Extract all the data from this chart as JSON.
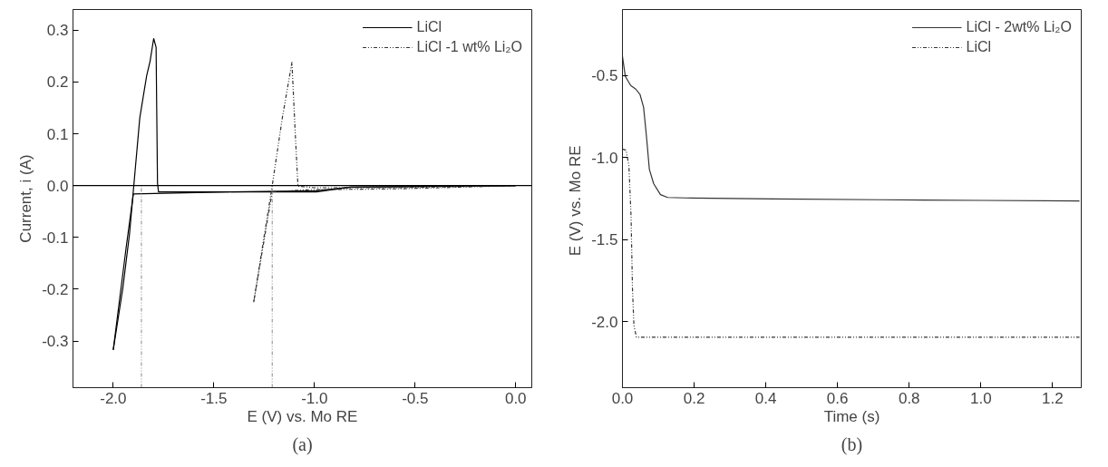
{
  "chart_data": [
    {
      "type": "line",
      "xlabel": "E (V) vs. Mo RE",
      "ylabel": "Current, i (A)",
      "annotations": [
        "(a)"
      ],
      "xlim": [
        -2.2,
        0.08
      ],
      "ylim": [
        -0.39,
        0.34
      ],
      "xticks": [
        {
          "value": -2,
          "label": "-2.0"
        },
        -1.5,
        {
          "value": -1,
          "label": "-1.0"
        },
        -0.5,
        {
          "value": 0,
          "label": "0.0"
        }
      ],
      "yticks": [
        -0.3,
        -0.2,
        -0.1,
        {
          "value": 0,
          "label": "0.0"
        },
        0.1,
        0.2,
        0.3
      ],
      "grid": false,
      "legend": "top right",
      "ref_lines": [
        {
          "axis": "y",
          "value": 0,
          "label": null,
          "color": "#000000",
          "line_style": "solid"
        },
        {
          "axis": "x",
          "value": -1.86,
          "label": null,
          "color": "#888888",
          "line_style": "dotted"
        },
        {
          "axis": "x",
          "value": -1.21,
          "label": null,
          "color": "#888888",
          "line_style": "dotted"
        }
      ],
      "series": [
        {
          "name": "LiCl",
          "color": "#000000",
          "line_style": "solid",
          "x": [
            -2.0,
            -1.953,
            -1.919,
            -1.868,
            -1.834,
            -1.817,
            -1.799,
            -1.787,
            -1.784,
            -1.78,
            -1.775,
            -0.99,
            -0.82,
            0.0
          ],
          "values": [
            -0.317,
            -0.2,
            -0.093,
            0.131,
            0.212,
            0.24,
            0.284,
            0.267,
            0.151,
            0.005,
            -0.012,
            -0.012,
            -0.003,
            0.0
          ]
        },
        {
          "color": "#000000",
          "line_style": "solid",
          "x": [
            0.0,
            -0.82,
            -0.99,
            -1.43,
            -1.9,
            -1.936,
            -2.0
          ],
          "values": [
            0.0,
            -0.003,
            -0.01,
            -0.012,
            -0.016,
            -0.12,
            -0.317
          ]
        },
        {
          "name": "LiCl -1 wt% Li₂O",
          "color": "#333333",
          "line_style": "dotted",
          "x": [
            -1.302,
            -1.21,
            -1.16,
            -1.112,
            -1.095,
            -1.082,
            -1.0,
            -0.6,
            0.0
          ],
          "values": [
            -0.225,
            0.0,
            0.13,
            0.238,
            0.097,
            -0.001,
            -0.004,
            -0.004,
            0.0
          ]
        },
        {
          "color": "#333333",
          "line_style": "dotted",
          "x": [
            0.0,
            -0.57,
            -1.05,
            -1.21,
            -1.302
          ],
          "values": [
            0.0,
            -0.006,
            -0.008,
            -0.012,
            -0.225
          ]
        }
      ]
    },
    {
      "type": "line",
      "xlabel": "Time (s)",
      "ylabel": "E (V)  vs. Mo RE",
      "annotations": [
        "(b)"
      ],
      "xlim": [
        0.0,
        1.28
      ],
      "ylim": [
        -2.4,
        -0.1
      ],
      "xticks": [
        {
          "value": 0,
          "label": "0.0"
        },
        0.2,
        0.4,
        0.6,
        0.8,
        {
          "value": 1,
          "label": "1.0"
        },
        1.2
      ],
      "yticks": [
        {
          "value": -2,
          "label": "-2.0"
        },
        -1.5,
        {
          "value": -1,
          "label": "-1.0"
        },
        -0.5
      ],
      "grid": false,
      "legend": "top right",
      "series": [
        {
          "name": "LiCl - 2wt% Li₂O",
          "color": "#333333",
          "line_style": "solid",
          "x": [
            0.0,
            0.008,
            0.023,
            0.037,
            0.049,
            0.059,
            0.067,
            0.075,
            0.087,
            0.106,
            0.126,
            0.175,
            0.422,
            0.717,
            1.003,
            1.275
          ],
          "values": [
            -0.385,
            -0.507,
            -0.562,
            -0.584,
            -0.617,
            -0.695,
            -0.872,
            -1.071,
            -1.159,
            -1.226,
            -1.243,
            -1.246,
            -1.252,
            -1.257,
            -1.261,
            -1.265
          ]
        },
        {
          "name": "LiCl",
          "color": "#333333",
          "line_style": "dotted",
          "x": [
            0.0,
            0.01,
            0.018,
            0.024,
            0.028,
            0.032,
            0.039,
            0.4,
            1.275
          ],
          "values": [
            -0.949,
            -0.956,
            -1.049,
            -1.358,
            -1.801,
            -2.022,
            -2.093,
            -2.093,
            -2.093
          ]
        }
      ]
    }
  ]
}
